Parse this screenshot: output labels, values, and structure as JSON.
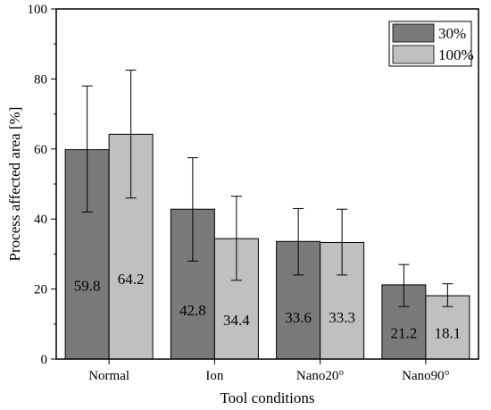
{
  "chart_data": {
    "type": "bar",
    "title": "",
    "xlabel": "Tool conditions",
    "ylabel": "Process affected area [%]",
    "categories": [
      "Normal",
      "Ion",
      "Nano20°",
      "Nano90°"
    ],
    "ylim": [
      0,
      100
    ],
    "yticks": [
      0,
      20,
      40,
      60,
      80,
      100
    ],
    "grid": false,
    "legend_position": "top-right",
    "series": [
      {
        "name": "30%",
        "color": "#7a7a7a",
        "values": [
          59.8,
          42.8,
          33.6,
          21.2
        ],
        "labels": [
          "59.8",
          "42.8",
          "33.6",
          "21.2"
        ],
        "error_low": [
          42,
          28,
          24,
          15
        ],
        "error_high": [
          78,
          57.5,
          43,
          27
        ]
      },
      {
        "name": "100%",
        "color": "#c0c0c0",
        "values": [
          64.2,
          34.4,
          33.3,
          18.1
        ],
        "labels": [
          "64.2",
          "34.4",
          "33.3",
          "18.1"
        ],
        "error_low": [
          46,
          22.5,
          24,
          15
        ],
        "error_high": [
          82.5,
          46.5,
          42.8,
          21.5
        ]
      }
    ]
  }
}
